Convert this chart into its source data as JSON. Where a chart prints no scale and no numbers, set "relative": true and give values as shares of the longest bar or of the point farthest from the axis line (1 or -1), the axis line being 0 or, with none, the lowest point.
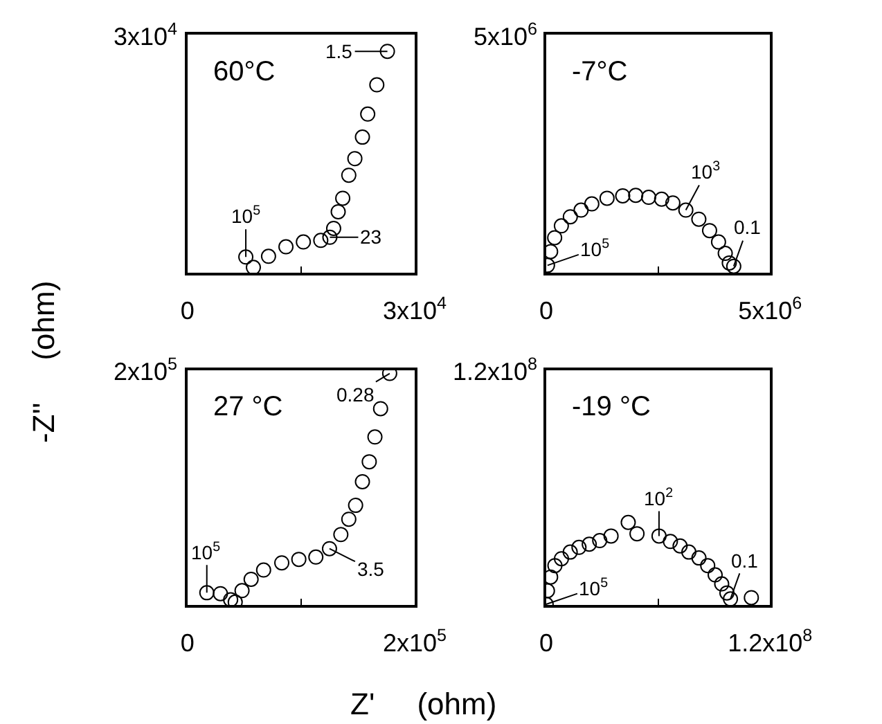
{
  "chart_data": [
    {
      "type": "scatter",
      "title": "60°C",
      "relative": true,
      "marker": "circle",
      "color": "#000000",
      "x": [
        7700,
        8700,
        10700,
        13000,
        15300,
        17600,
        18800,
        19300,
        19900,
        20500,
        21300,
        22100,
        23100,
        23800,
        25000,
        26400
      ],
      "values": [
        0.072,
        0.025,
        0.075,
        0.118,
        0.14,
        0.147,
        0.161,
        0.201,
        0.276,
        0.337,
        0.441,
        0.516,
        0.613,
        0.717,
        0.849,
        1
      ],
      "xlim": [
        0,
        30000
      ],
      "xticks": [
        0,
        {
          "value": 15000,
          "label": null
        },
        {
          "value": 30000,
          "label": "3x10$^{4}$"
        }
      ],
      "annotations": [
        "3x10$^{4}$",
        {
          "text": "10$^{5}$",
          "x": 7700,
          "y": 0.072
        },
        {
          "text": "23",
          "x": 18800,
          "y": 0.161
        },
        {
          "text": "1.5",
          "x": 26400,
          "y": 1
        }
      ]
    },
    {
      "type": "scatter",
      "title": "-7°C",
      "relative": true,
      "marker": "circle",
      "color": "#000000",
      "x": [
        30000,
        100000,
        190000,
        340000,
        540000,
        780000,
        1020000,
        1360000,
        1710000,
        2000000,
        2290000,
        2580000,
        2830000,
        3120000,
        3410000,
        3650000,
        3850000,
        4000000,
        4090000,
        4190000
      ],
      "values": [
        0.098,
        0.276,
        0.454,
        0.607,
        0.724,
        0.81,
        0.89,
        0.963,
        0.994,
        1,
        0.975,
        0.951,
        0.902,
        0.81,
        0.693,
        0.546,
        0.399,
        0.252,
        0.129,
        0.086
      ],
      "xlim": [
        0,
        5000000
      ],
      "xticks": [
        0,
        {
          "value": 2500000,
          "label": null
        },
        {
          "value": 5000000,
          "label": "5x10$^{6}$"
        }
      ],
      "annotations": [
        "5x10$^{6}$",
        {
          "text": "10$^{5}$",
          "x": 30000,
          "y": 0.098
        },
        {
          "text": "10$^{3}$",
          "x": 3120000,
          "y": 0.81
        },
        {
          "text": "0.1",
          "x": 4190000,
          "y": 0.086
        }
      ]
    },
    {
      "type": "scatter",
      "title": "27 °C",
      "xlabel": "Z'     (ohm)",
      "ylabel": "-Z''     (ohm)",
      "relative": true,
      "marker": "circle",
      "color": "#000000",
      "x": [
        17000,
        29000,
        38000,
        42000,
        48000,
        56000,
        67000,
        83000,
        98000,
        113000,
        125000,
        135000,
        142000,
        148000,
        154000,
        160000,
        165000,
        170000,
        178000
      ],
      "values": [
        0.054,
        0.05,
        0.024,
        0.014,
        0.063,
        0.112,
        0.152,
        0.183,
        0.198,
        0.208,
        0.244,
        0.305,
        0.371,
        0.431,
        0.533,
        0.619,
        0.726,
        0.848,
        1
      ],
      "xlim": [
        0,
        200000
      ],
      "xticks": [
        0,
        {
          "value": 100000,
          "label": null
        },
        {
          "value": 200000,
          "label": "2x10$^{5}$"
        }
      ],
      "annotations": [
        "2x10$^{5}$",
        {
          "text": "10$^{5}$",
          "x": 17000,
          "y": 0.054
        },
        {
          "text": "3.5",
          "x": 125000,
          "y": 0.244
        },
        {
          "text": "0.28",
          "x": 178000,
          "y": 1
        }
      ]
    },
    {
      "type": "scatter",
      "title": "-19 °C",
      "relative": true,
      "marker": "circle",
      "color": "#000000",
      "x": [
        0,
        700000,
        2400000,
        4700000,
        8200000,
        12900000,
        17600000,
        23100000,
        28700000,
        34800000,
        44000000,
        48700000,
        60500000,
        66600000,
        71800000,
        76500000,
        81900000,
        86600000,
        90600000,
        94100000,
        96900000,
        98800000,
        110000000
      ],
      "values": [
        0.012,
        0.175,
        0.341,
        0.479,
        0.562,
        0.642,
        0.699,
        0.737,
        0.78,
        0.836,
        1,
        0.863,
        0.836,
        0.77,
        0.716,
        0.642,
        0.571,
        0.479,
        0.367,
        0.258,
        0.149,
        0.076,
        0.092
      ],
      "xlim": [
        0,
        120000000
      ],
      "xticks": [
        0,
        {
          "value": 60000000,
          "label": null
        },
        {
          "value": 120000000,
          "label": "1.2x10$^{8}$"
        }
      ],
      "annotations": [
        "1.2x10$^{8}$",
        {
          "text": "10$^{5}$",
          "x": 0,
          "y": 0.012
        },
        {
          "text": "10$^{2}$",
          "x": 60500000,
          "y": 0.836
        },
        {
          "text": "0.1",
          "x": 98800000,
          "y": 0.076
        }
      ]
    }
  ]
}
